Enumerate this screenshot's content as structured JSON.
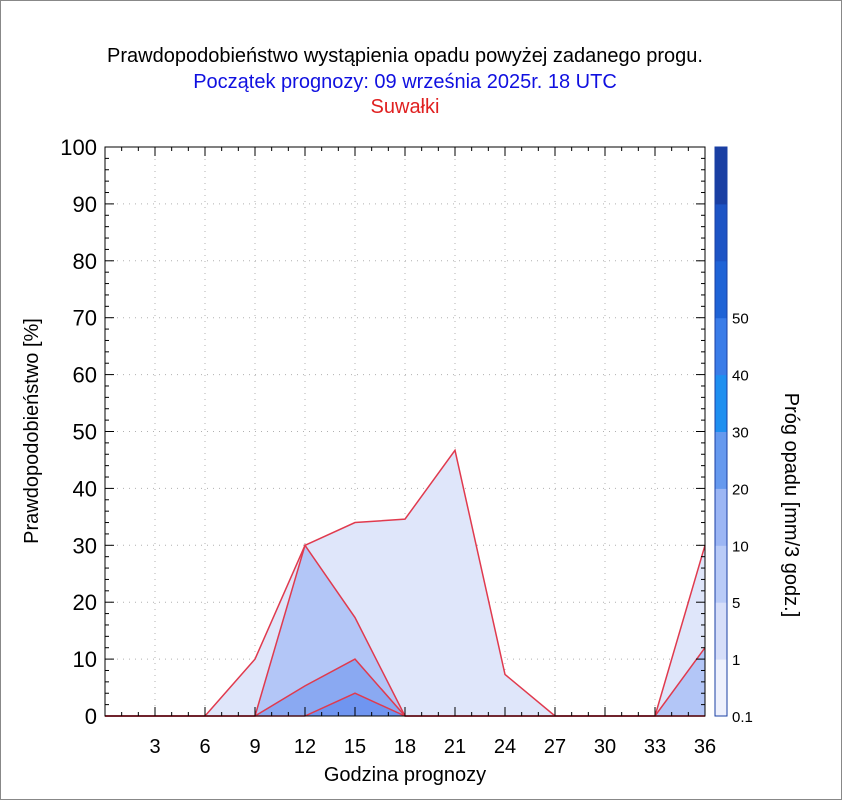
{
  "chart_data": {
    "type": "area",
    "title": "Prawdopodobieństwo wystąpienia opadu powyżej zadanego progu.",
    "subtitle": "Początek prognozy: 09 września 2025r. 18 UTC",
    "location": "Suwałki",
    "xlabel": "Godzina prognozy",
    "ylabel": "Prawdopodobieństwo [%]",
    "colorbar_label": "Próg opadu [mm/3 godz.]",
    "xlim": [
      0,
      36
    ],
    "ylim": [
      0,
      100
    ],
    "x_ticks": [
      3,
      6,
      9,
      12,
      15,
      18,
      21,
      24,
      27,
      30,
      33,
      36
    ],
    "y_ticks": [
      0,
      10,
      20,
      30,
      40,
      50,
      60,
      70,
      80,
      90,
      100
    ],
    "x": [
      0,
      3,
      6,
      9,
      12,
      15,
      18,
      21,
      24,
      27,
      30,
      33,
      36
    ],
    "series": [
      {
        "threshold": 0.1,
        "color": "#dfe6fa",
        "values": [
          0,
          0,
          0,
          10,
          30,
          34,
          34.6,
          46.7,
          7.3,
          0,
          0,
          0,
          30
        ]
      },
      {
        "threshold": 1,
        "color": "#b3c6f7",
        "values": [
          0,
          0,
          0,
          0,
          30,
          17.3,
          0,
          0,
          0,
          0,
          0,
          0,
          12
        ]
      },
      {
        "threshold": 5,
        "color": "#8aa9f2",
        "values": [
          0,
          0,
          0,
          0,
          5.3,
          10,
          0,
          0,
          0,
          0,
          0,
          0,
          0
        ]
      },
      {
        "threshold": 10,
        "color": "#6f95f0",
        "values": [
          0,
          0,
          0,
          0,
          0,
          4,
          0,
          0,
          0,
          0,
          0,
          0,
          0
        ]
      }
    ],
    "colorbar": {
      "labels": [
        "0.1",
        "1",
        "5",
        "10",
        "20",
        "30",
        "40",
        "50"
      ],
      "colors": [
        "#eef1fd",
        "#d6def9",
        "#b9cbf7",
        "#9cb6f4",
        "#6699ee",
        "#1f8ff0",
        "#3a7ce8",
        "#1f63d6",
        "#1d54c5",
        "#1a3fa3"
      ]
    },
    "line_color": "#e03a4e",
    "grid": true
  }
}
